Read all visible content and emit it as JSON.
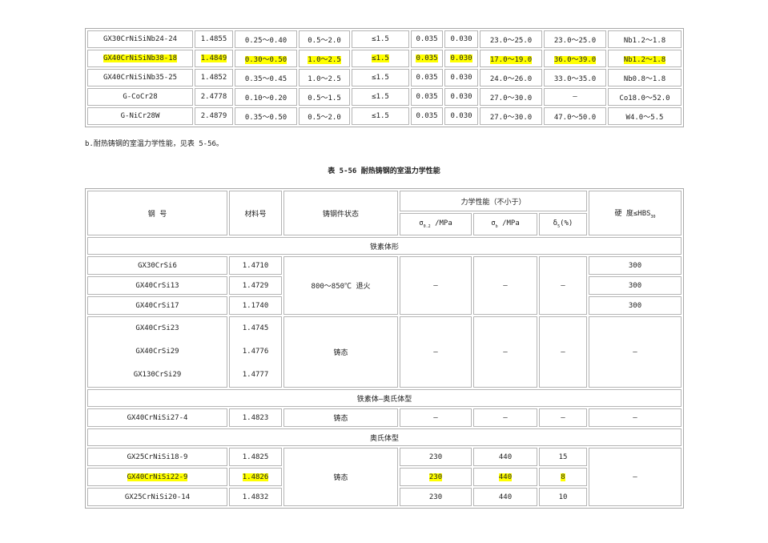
{
  "table1": {
    "rows": [
      [
        "GX30CrNiSiNb24-24",
        "1.4855",
        "0.25～0.40",
        "0.5～2.0",
        "≤1.5",
        "0.035",
        "0.030",
        "23.0～25.0",
        "23.0～25.0",
        "Nb1.2～1.8"
      ],
      [
        "GX40CrNiSiNb38-18",
        "1.4849",
        "0.30～0.50",
        "1.0～2.5",
        "≤1.5",
        "0.035",
        "0.030",
        "17.0～19.0",
        "36.0～39.0",
        "Nb1.2～1.8"
      ],
      [
        "GX40CrNiSiNb35-25",
        "1.4852",
        "0.35～0.45",
        "1.0～2.5",
        "≤1.5",
        "0.035",
        "0.030",
        "24.0～26.0",
        "33.0～35.0",
        "Nb0.8～1.8"
      ],
      [
        "G-CoCr28",
        "2.4778",
        "0.10～0.20",
        "0.5～1.5",
        "≤1.5",
        "0.035",
        "0.030",
        "27.0～30.0",
        "—",
        "Co18.0～52.0"
      ],
      [
        "G-NiCr28W",
        "2.4879",
        "0.35～0.50",
        "0.5～2.0",
        "≤1.5",
        "0.035",
        "0.030",
        "27.0～30.0",
        "47.0～50.0",
        "W4.0～5.5"
      ]
    ],
    "highlight_color": "#ffff00"
  },
  "paragraph": "b.耐热铸钢的室温力学性能，见表 5-56。",
  "table2": {
    "title": "表 5-56  耐热铸钢的室温力学性能",
    "headers": {
      "grade": "钢  号",
      "material": "材料号",
      "state": "铸钢件状态",
      "mech": "力学性能（不小于）",
      "s02": "σ",
      "s02_sub": "0.2",
      "s02_unit": " /MPa",
      "sb": "σ",
      "sb_sub": "b",
      "sb_unit": " /MPa",
      "d5": "δ",
      "d5_sub": "5",
      "d5_unit": "(%)",
      "hard": "硬  度≤HBS",
      "hard_sub": "30"
    },
    "sections": [
      "铁素体形",
      "铁素体—奥氏体型",
      "奥氏体型"
    ],
    "ferritic": {
      "rows": [
        [
          "GX30CrSi6",
          "1.4710",
          "300"
        ],
        [
          "GX40CrSi13",
          "1.4729",
          "300"
        ],
        [
          "GX40CrSi17",
          "1.1740",
          "300"
        ]
      ],
      "state": "800～850℃ 退火",
      "dash": "—"
    },
    "ferritic2": {
      "grades": [
        "GX40CrSi23",
        "GX40CrSi29",
        "GX130CrSi29"
      ],
      "materials": [
        "1.4745",
        "1.4776",
        "1.4777"
      ],
      "state": "铸态",
      "dash": "—"
    },
    "duplex": [
      "GX40CrNiSi27-4",
      "1.4823",
      "铸态",
      "—",
      "—",
      "—",
      "—"
    ],
    "austenitic": {
      "rows": [
        [
          "GX25CrNiSi18-9",
          "1.4825",
          "230",
          "440",
          "15"
        ],
        [
          "GX40CrNiSi22-9",
          "1.4826",
          "230",
          "440",
          "8"
        ],
        [
          "GX25CrNiSi20-14",
          "1.4832",
          "230",
          "440",
          "10"
        ]
      ],
      "state": "铸态",
      "hard": "—"
    }
  }
}
